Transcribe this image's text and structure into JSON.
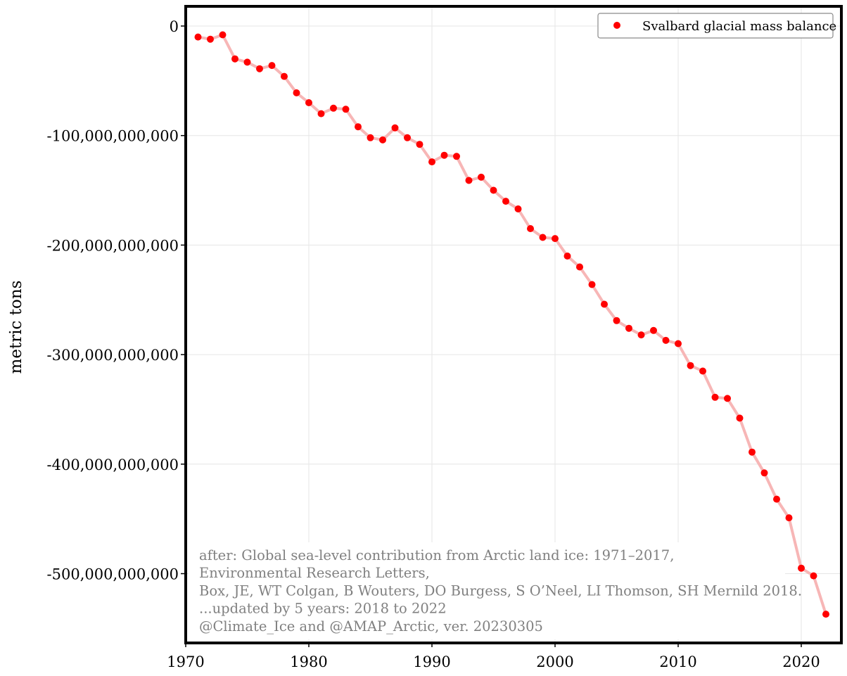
{
  "chart_data": {
    "type": "line",
    "title": "",
    "xlabel": "",
    "ylabel": "metric tons",
    "xlim": [
      1970,
      2023
    ],
    "ylim": [
      -560000000000,
      18000000000
    ],
    "grid": true,
    "legend_position": "top-right",
    "x_ticks": [
      1970,
      1980,
      1990,
      2000,
      2010,
      2020
    ],
    "x_tick_labels": [
      "1970",
      "1980",
      "1990",
      "2000",
      "2010",
      "2020"
    ],
    "y_ticks": [
      0,
      -100000000000,
      -200000000000,
      -300000000000,
      -400000000000,
      -500000000000
    ],
    "y_tick_labels": [
      "0",
      "-100,000,000,000",
      "-200,000,000,000",
      "-300,000,000,000",
      "-400,000,000,000",
      "-500,000,000,000"
    ],
    "colors": {
      "marker": "#ff0000",
      "line": "#f7b6b6",
      "grid": "#e6e6e6",
      "frame": "#000000",
      "credit": "#808080"
    },
    "series": [
      {
        "name": "Svalbard glacial mass balance",
        "x": [
          1971,
          1972,
          1973,
          1974,
          1975,
          1976,
          1977,
          1978,
          1979,
          1980,
          1981,
          1982,
          1983,
          1984,
          1985,
          1986,
          1987,
          1988,
          1989,
          1990,
          1991,
          1992,
          1993,
          1994,
          1995,
          1996,
          1997,
          1998,
          1999,
          2000,
          2001,
          2002,
          2003,
          2004,
          2005,
          2006,
          2007,
          2008,
          2009,
          2010,
          2011,
          2012,
          2013,
          2014,
          2015,
          2016,
          2017,
          2018,
          2019,
          2020,
          2021,
          2022
        ],
        "y": [
          -10000000000,
          -12000000000,
          -8000000000,
          -30000000000,
          -33000000000,
          -39000000000,
          -36000000000,
          -46000000000,
          -61000000000,
          -70000000000,
          -80000000000,
          -75000000000,
          -76000000000,
          -92000000000,
          -102000000000,
          -104000000000,
          -93000000000,
          -102000000000,
          -108000000000,
          -124000000000,
          -118000000000,
          -119000000000,
          -141000000000,
          -138000000000,
          -150000000000,
          -160000000000,
          -167000000000,
          -185000000000,
          -193000000000,
          -194000000000,
          -210000000000,
          -220000000000,
          -236000000000,
          -254000000000,
          -269000000000,
          -276000000000,
          -282000000000,
          -278000000000,
          -287000000000,
          -290000000000,
          -310000000000,
          -315000000000,
          -339000000000,
          -340000000000,
          -358000000000,
          -389000000000,
          -408000000000,
          -432000000000,
          -449000000000,
          -495000000000,
          -502000000000,
          -537000000000
        ]
      }
    ],
    "annotation_lines": [
      "after: Global sea-level contribution from Arctic land ice: 1971–2017,",
      "Environmental Research Letters,",
      "Box, JE, WT Colgan, B Wouters, DO Burgess, S O’Neel, LI Thomson, SH Mernild 2018.",
      "...updated by 5 years: 2018 to 2022",
      "@Climate_Ice and @AMAP_Arctic, ver. 20230305"
    ]
  }
}
